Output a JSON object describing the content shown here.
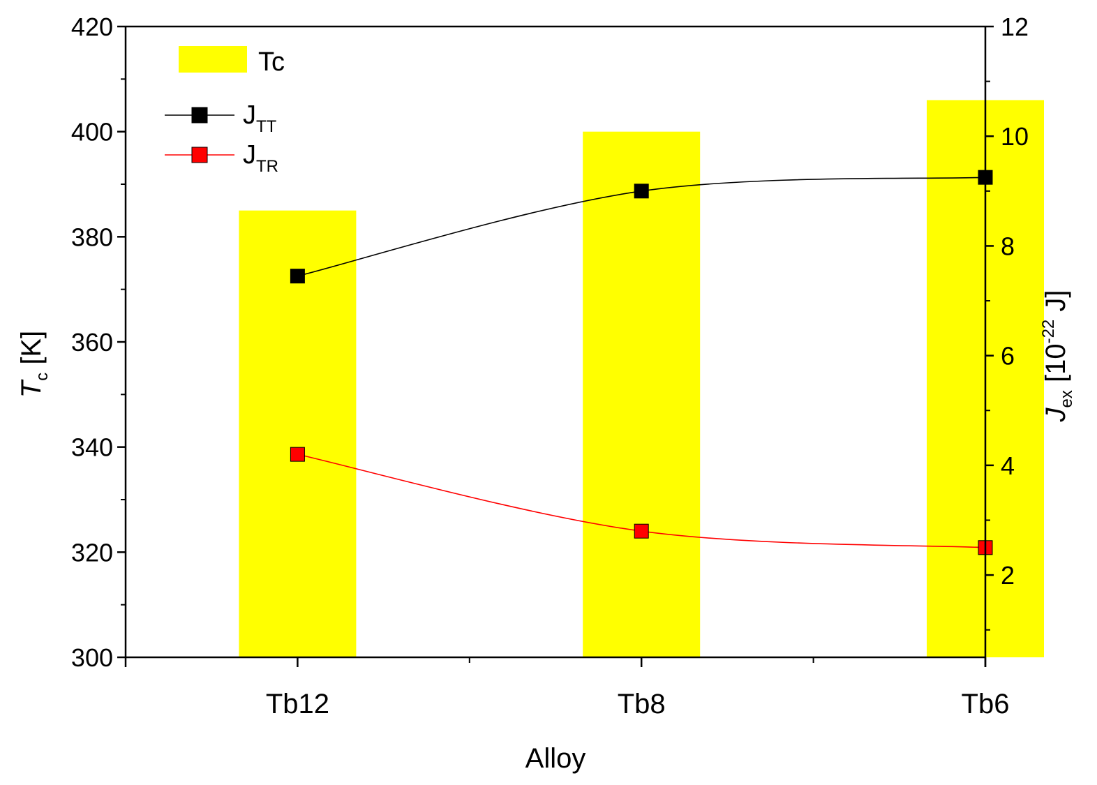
{
  "chart_data": {
    "type": "bar+line",
    "xlabel": "Alloy",
    "categories": [
      "Tb12",
      "Tb8",
      "Tb6"
    ],
    "left_axis": {
      "label_main": "T",
      "label_sub": "c",
      "label_unit": " [K]",
      "range": [
        300,
        420
      ],
      "ticks": [
        300,
        320,
        340,
        360,
        380,
        400,
        420
      ]
    },
    "right_axis": {
      "label_main": "J",
      "label_sub": "ex",
      "label_pre_unit": " [10",
      "label_sup": "-22",
      "label_post_unit": " J]",
      "range": [
        0.5,
        12
      ],
      "ticks": [
        2,
        4,
        6,
        8,
        10,
        12
      ]
    },
    "bars": {
      "name": "Tc",
      "axis": "left",
      "color": "#ffff00",
      "values": [
        385,
        400,
        406
      ]
    },
    "series": [
      {
        "name": "J",
        "name_sub": "TT",
        "axis": "right",
        "color": "#000000",
        "values": [
          7.45,
          9.0,
          9.25
        ]
      },
      {
        "name": "J",
        "name_sub": "TR",
        "axis": "right",
        "color": "#ff0000",
        "values": [
          4.2,
          2.8,
          2.5
        ]
      }
    ],
    "legend_position": "top-left"
  }
}
